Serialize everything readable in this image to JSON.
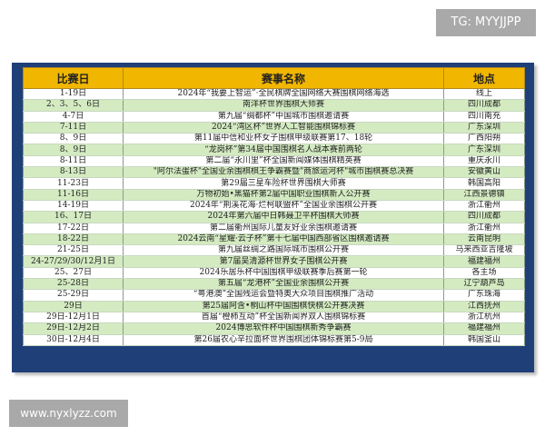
{
  "watermarks": {
    "top": "TG: MYYJJPP",
    "bottom": "www.nyxlyzz.com"
  },
  "table": {
    "headers": [
      "比赛日",
      "赛事名称",
      "地点"
    ],
    "rows": [
      [
        "1-19日",
        "2024年“我要上智运”·全民棋牌全国网络大赛围棋网络海选",
        "线上"
      ],
      [
        "2、3、5、6日",
        "南洋杯世界围棋大师赛",
        "四川成都"
      ],
      [
        "4-7日",
        "第九届“绸都杯”中国城市围棋邀请赛",
        "四川南充"
      ],
      [
        "7-11日",
        "2024“湾区杯”世界人工智能围棋锦标赛",
        "广东深圳"
      ],
      [
        "8、9日",
        "第11届中信和业杯女子围棋甲级联赛第17、18轮",
        "广西阳朔"
      ],
      [
        "8、9日",
        "“龙岗杯”第34届中国围棋名人战本赛前两轮",
        "广东深圳"
      ],
      [
        "8-11日",
        "第二届“永川里”杯全国新闻媒体围棋精英赛",
        "重庆永川"
      ],
      [
        "8-13日",
        "\"阿尔法蛋杯\"全国业余围棋棋王争霸赛暨\"商旅运河杯\"城市围棋赛总决赛",
        "安徽黄山"
      ],
      [
        "11-23日",
        "第29届三星车险杯世界围棋大师赛",
        "韩国高阳"
      ],
      [
        "11-16日",
        "万物初始•黑猫杯第2届中国职业围棋新人公开赛",
        "江西景德镇"
      ],
      [
        "14-19日",
        "2024年“荆溪花海·烂柯联盟杯”全国业余围棋公开赛",
        "浙江衢州"
      ],
      [
        "16、17日",
        "2024年第六届中日韩聂卫平杯围棋大师赛",
        "四川成都"
      ],
      [
        "17-22日",
        "第二届衢州国际儿童友好业余围棋邀请赛",
        "浙江衢州"
      ],
      [
        "18-22日",
        "2024云南“星耀·云子杯”第十七届中国西部省区围棋邀请赛",
        "云南昆明"
      ],
      [
        "21-25日",
        "第九届丝绸之路国际城市围棋公开赛",
        "马来西亚吉隆坡"
      ],
      [
        "24-27/29/30/12月1日",
        "第7届吴清源杯世界女子围棋公开赛",
        "福建福州"
      ],
      [
        "25、27日",
        "2024乐居乐杯中国围棋甲级联赛季后赛第一轮",
        "各主场"
      ],
      [
        "25-28日",
        "第五届“龙港杯”全国业余围棋公开赛",
        "辽宁葫芦岛"
      ],
      [
        "25-29日",
        "“粤港澳”全国残运会暨特奥大众项目围棋推广活动",
        "广东珠海"
      ],
      [
        "29日",
        "第25届阿含•桐山杯中国围棋快棋公开赛决赛",
        "江西抚州"
      ],
      [
        "29日-12月1日",
        "首届“橙柿互动”杯全国新闻界双人围棋锦标赛",
        "浙江杭州"
      ],
      [
        "29日-12月2日",
        "2024博思软件杯中国围棋新秀争霸赛",
        "福建福州"
      ],
      [
        "30日-12月4日",
        "第26届农心辛拉面杯世界围棋团体锦标赛第5-9局",
        "韩国釜山"
      ]
    ]
  },
  "colors": {
    "header": "#f1b600",
    "frame": "#1f3f78",
    "alt_row": "#d4ebc2"
  }
}
